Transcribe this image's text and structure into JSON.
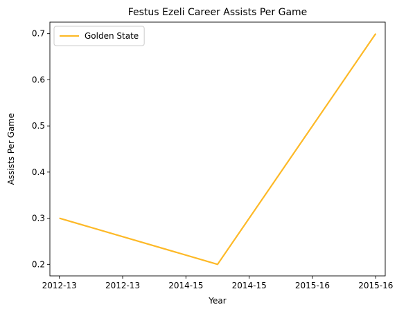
{
  "chart_data": {
    "type": "line",
    "title": "Festus Ezeli Career Assists Per Game",
    "xlabel": "Year",
    "ylabel": "Assists Per Game",
    "x_tick_labels": [
      "2012-13",
      "2012-13",
      "2014-15",
      "2014-15",
      "2015-16",
      "2015-16"
    ],
    "x_tick_positions": [
      0,
      1,
      2,
      3,
      4,
      5
    ],
    "xlim": [
      -0.15,
      5.15
    ],
    "ylim": [
      0.175,
      0.725
    ],
    "y_ticks": [
      0.2,
      0.3,
      0.4,
      0.5,
      0.6,
      0.7
    ],
    "y_tick_labels": [
      "0.2",
      "0.3",
      "0.4",
      "0.5",
      "0.6",
      "0.7"
    ],
    "series": [
      {
        "name": "Golden State",
        "color": "#FDB927",
        "x": [
          0,
          2.5,
          5
        ],
        "y": [
          0.3,
          0.2,
          0.7
        ]
      }
    ],
    "legend_placement": "top-left",
    "grid": false
  }
}
